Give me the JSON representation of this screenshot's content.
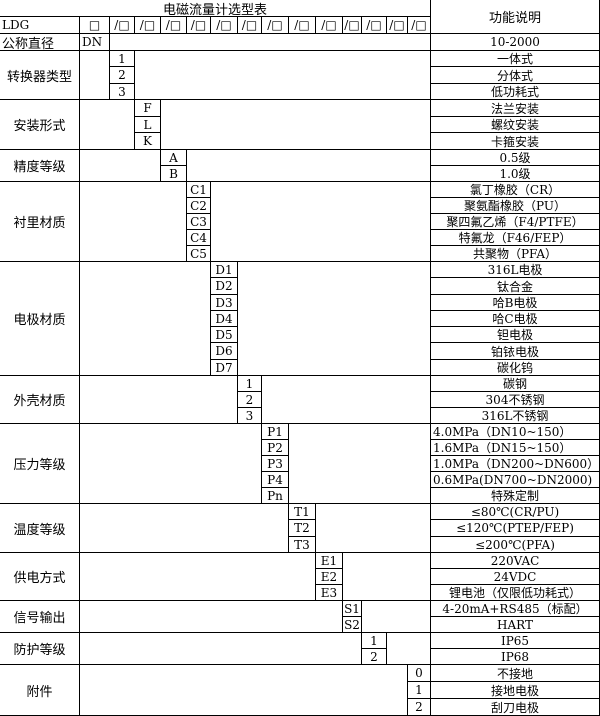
{
  "header": {
    "title": "电磁流量计选型表",
    "function_title": "功能说明",
    "model": "LDG",
    "first_slot": "□",
    "slot": "/□",
    "slot_count": 13
  },
  "nominal_diameter": {
    "label": "公称直径",
    "code": "DN",
    "function": "10-2000"
  },
  "groups": [
    {
      "label": "转换器类型",
      "items": [
        {
          "code": "1",
          "function": "一体式"
        },
        {
          "code": "2",
          "function": "分体式"
        },
        {
          "code": "3",
          "function": "低功耗式"
        }
      ]
    },
    {
      "label": "安装形式",
      "items": [
        {
          "code": "F",
          "function": "法兰安装"
        },
        {
          "code": "L",
          "function": "螺纹安装"
        },
        {
          "code": "K",
          "function": "卡箍安装"
        }
      ]
    },
    {
      "label": "精度等级",
      "items": [
        {
          "code": "A",
          "function": "0.5级"
        },
        {
          "code": "B",
          "function": "1.0级"
        }
      ]
    },
    {
      "label": "衬里材质",
      "items": [
        {
          "code": "C1",
          "function": "氯丁橡胶（CR）"
        },
        {
          "code": "C2",
          "function": "聚氨酯橡胶（PU）"
        },
        {
          "code": "C3",
          "function": "聚四氟乙烯（F4/PTFE）"
        },
        {
          "code": "C4",
          "function": "特氟龙（F46/FEP）"
        },
        {
          "code": "C5",
          "function": "共聚物（PFA）"
        }
      ]
    },
    {
      "label": "电极材质",
      "items": [
        {
          "code": "D1",
          "function": "316L电极"
        },
        {
          "code": "D2",
          "function": "钛合金"
        },
        {
          "code": "D3",
          "function": "哈B电极"
        },
        {
          "code": "D4",
          "function": "哈C电极"
        },
        {
          "code": "D5",
          "function": "钽电极"
        },
        {
          "code": "D6",
          "function": "铂铱电极"
        },
        {
          "code": "D7",
          "function": "碳化钨"
        }
      ]
    },
    {
      "label": "外壳材质",
      "items": [
        {
          "code": "1",
          "function": "碳钢"
        },
        {
          "code": "2",
          "function": "304不锈钢"
        },
        {
          "code": "3",
          "function": "316L不锈钢"
        }
      ]
    },
    {
      "label": "压力等级",
      "items": [
        {
          "code": "P1",
          "function": "4.0MPa（DN10~150）",
          "align": "left"
        },
        {
          "code": "P2",
          "function": "1.6MPa（DN15~150）",
          "align": "left"
        },
        {
          "code": "P3",
          "function": "1.0MPa（DN200~DN600）",
          "align": "left"
        },
        {
          "code": "P4",
          "function": "0.6MPa(DN700~DN2000)",
          "align": "left"
        },
        {
          "code": "Pn",
          "function": "特殊定制"
        }
      ]
    },
    {
      "label": "温度等级",
      "items": [
        {
          "code": "T1",
          "function": "≤80℃(CR/PU)"
        },
        {
          "code": "T2",
          "function": "≤120℃(PTEP/FEP)"
        },
        {
          "code": "T3",
          "function": "≤200℃(PFA)"
        }
      ]
    },
    {
      "label": "供电方式",
      "items": [
        {
          "code": "E1",
          "function": "220VAC"
        },
        {
          "code": "E2",
          "function": "24VDC"
        },
        {
          "code": "E3",
          "function": "锂电池（仅限低功耗式）"
        }
      ]
    },
    {
      "label": "信号输出",
      "items": [
        {
          "code": "S1",
          "function": "4-20mA+RS485（标配）"
        },
        {
          "code": "S2",
          "function": "HART"
        }
      ]
    },
    {
      "label": "防护等级",
      "items": [
        {
          "code": "1",
          "function": "IP65"
        },
        {
          "code": "2",
          "function": "IP68"
        }
      ]
    },
    {
      "label": "附件",
      "items": [
        {
          "code": "0",
          "function": "不接地"
        },
        {
          "code": "1",
          "function": "接地电极"
        },
        {
          "code": "2",
          "function": "刮刀电极"
        }
      ]
    }
  ]
}
